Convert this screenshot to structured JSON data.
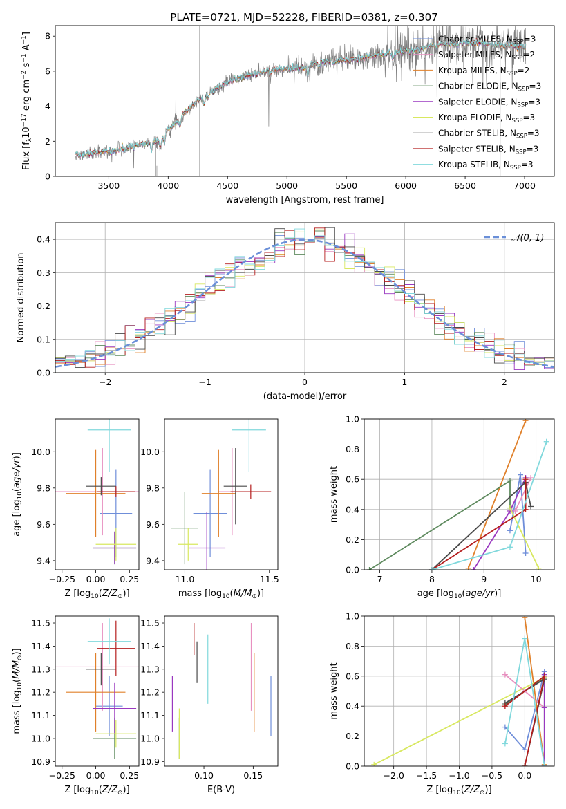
{
  "suptitle": "PLATE=0721, MJD=52228, FIBERID=0381, z=0.307",
  "colors": {
    "Chabrier MILES": "#6f8ed9",
    "Salpeter MILES": "#e890c0",
    "Kroupa MILES": "#e0802a",
    "Chabrier ELODIE": "#5e8a5e",
    "Salpeter ELODIE": "#9a38c0",
    "Kroupa ELODIE": "#d8e860",
    "Chabrier STELIB": "#4a4a4a",
    "Salpeter STELIB": "#b51e1e",
    "Kroupa STELIB": "#80d8dc"
  },
  "chart_data": [
    {
      "type": "line",
      "title": "PLATE=0721, MJD=52228, FIBERID=0381, z=0.307",
      "xlabel": "wavelength [Angstrom, rest frame]",
      "ylabel": "Flux [f_λ 10^-17 erg cm^-2 s^-1 A^-1]",
      "xlim": [
        3050,
        7250
      ],
      "ylim": [
        0,
        8.6
      ],
      "xticks": [
        3500,
        4000,
        4500,
        5000,
        5500,
        6000,
        6500,
        7000
      ],
      "yticks": [
        0,
        2,
        4,
        6,
        8
      ],
      "grid": false,
      "legend_position": "upper right",
      "continuum_knots": {
        "x": [
          3220,
          3400,
          3550,
          3700,
          3800,
          3900,
          3950,
          4000,
          4100,
          4200,
          4300,
          4400,
          4500,
          4600,
          4700,
          4800,
          4900,
          5000,
          5100,
          5200,
          5300,
          5400,
          5500,
          5600,
          5700,
          5800,
          5900,
          6000,
          6100,
          6200,
          6300,
          6400,
          6500,
          6600,
          6700,
          6800,
          6900,
          7000
        ],
        "y": [
          1.2,
          1.35,
          1.45,
          1.7,
          1.9,
          2.05,
          2.2,
          2.7,
          3.3,
          4.0,
          4.6,
          5.0,
          5.35,
          5.6,
          5.8,
          6.0,
          6.1,
          6.1,
          6.15,
          6.35,
          6.5,
          6.55,
          6.6,
          6.7,
          6.85,
          7.0,
          7.05,
          7.15,
          7.25,
          7.4,
          7.6,
          7.55,
          7.6,
          7.65,
          7.55,
          7.5,
          7.45,
          7.4
        ]
      },
      "absorption_dips": [
        {
          "x": 3860,
          "depth": 0.5
        },
        {
          "x": 3934,
          "depth": 0.6
        },
        {
          "x": 3970,
          "depth": 0.55
        },
        {
          "x": 4102,
          "depth": 0.4
        },
        {
          "x": 4304,
          "depth": 0.6
        },
        {
          "x": 4340,
          "depth": 0.35
        },
        {
          "x": 4861,
          "depth": 0.35
        },
        {
          "x": 5175,
          "depth": 0.6
        },
        {
          "x": 5270,
          "depth": 0.3
        },
        {
          "x": 5892,
          "depth": 0.45
        }
      ],
      "series": [
        {
          "name": "Chabrier MILES",
          "label_main": "Chabrier MILES, N",
          "label_sub": "SSP",
          "label_end": "=3"
        },
        {
          "name": "Salpeter MILES",
          "label_main": "Salpeter MILES, N",
          "label_sub": "SSP",
          "label_end": "=2"
        },
        {
          "name": "Kroupa MILES",
          "label_main": "Kroupa MILES, N",
          "label_sub": "SSP",
          "label_end": "=2"
        },
        {
          "name": "Chabrier ELODIE",
          "label_main": "Chabrier ELODIE, N",
          "label_sub": "SSP",
          "label_end": "=3"
        },
        {
          "name": "Salpeter ELODIE",
          "label_main": "Salpeter ELODIE, N",
          "label_sub": "SSP",
          "label_end": "=3"
        },
        {
          "name": "Kroupa ELODIE",
          "label_main": "Kroupa ELODIE, N",
          "label_sub": "SSP",
          "label_end": "=3"
        },
        {
          "name": "Chabrier STELIB",
          "label_main": "Chabrier STELIB, N",
          "label_sub": "SSP",
          "label_end": "=3"
        },
        {
          "name": "Salpeter STELIB",
          "label_main": "Salpeter STELIB, N",
          "label_sub": "SSP",
          "label_end": "=3"
        },
        {
          "name": "Kroupa STELIB",
          "label_main": "Kroupa STELIB, N",
          "label_sub": "SSP",
          "label_end": "=3"
        }
      ],
      "data_series_color": "#808080"
    },
    {
      "type": "line",
      "xlabel": "(data-model)/error",
      "ylabel": "Normed distribution",
      "xlim": [
        -2.5,
        2.5
      ],
      "ylim": [
        0,
        0.45
      ],
      "xticks": [
        -2,
        -1,
        0,
        1,
        2
      ],
      "yticks": [
        0.0,
        0.1,
        0.2,
        0.3,
        0.4
      ],
      "grid": true,
      "legend_position": "upper right",
      "legend_label": "𝒩(0, 1)",
      "reference_curve": "normal",
      "histogram_bin_width": 0.1,
      "histogram_series": [
        "Chabrier MILES",
        "Salpeter MILES",
        "Kroupa MILES",
        "Chabrier ELODIE",
        "Salpeter ELODIE",
        "Kroupa ELODIE",
        "Chabrier STELIB",
        "Salpeter STELIB",
        "Kroupa STELIB"
      ]
    },
    {
      "type": "scatter",
      "xlabel": "Z [log10(Z/Z⊙)]",
      "ylabel": "age [log10(age/yr)]",
      "xlim": [
        -0.3,
        0.32
      ],
      "ylim": [
        9.35,
        10.18
      ],
      "xticks": [
        -0.25,
        0.0,
        0.25
      ],
      "yticks": [
        9.4,
        9.6,
        9.8,
        10.0
      ],
      "grid": false,
      "points": [
        {
          "series": "Chabrier MILES",
          "x": 0.15,
          "xerr": 0.12,
          "y": 9.66,
          "yerr": 0.24
        },
        {
          "series": "Salpeter MILES",
          "x": 0.05,
          "xerr": 0.36,
          "y": 9.78,
          "yerr": 0.24
        },
        {
          "series": "Kroupa MILES",
          "x": 0.0,
          "xerr": 0.22,
          "y": 9.77,
          "yerr": 0.24
        },
        {
          "series": "Chabrier ELODIE",
          "x": 0.14,
          "xerr": 0.16,
          "y": 9.47,
          "yerr": 0.09
        },
        {
          "series": "Salpeter ELODIE",
          "x": 0.14,
          "xerr": 0.16,
          "y": 9.47,
          "yerr": 0.09
        },
        {
          "series": "Kroupa ELODIE",
          "x": 0.15,
          "xerr": 0.15,
          "y": 9.49,
          "yerr": 0.09
        },
        {
          "series": "Chabrier STELIB",
          "x": 0.04,
          "xerr": 0.11,
          "y": 9.81,
          "yerr": 0.05
        },
        {
          "series": "Salpeter STELIB",
          "x": 0.15,
          "xerr": 0.14,
          "y": 9.78,
          "yerr": 0.03
        },
        {
          "series": "Kroupa STELIB",
          "x": 0.1,
          "xerr": 0.16,
          "y": 10.12,
          "yerr": 0.23
        }
      ]
    },
    {
      "type": "scatter",
      "xlabel": "mass [log10(M/M⊙)]",
      "ylabel": "",
      "xlim": [
        10.88,
        11.55
      ],
      "ylim": [
        9.35,
        10.18
      ],
      "xticks": [
        11.0,
        11.5
      ],
      "yticks": [
        9.4,
        9.6,
        9.8,
        10.0
      ],
      "grid": false,
      "points": [
        {
          "series": "Chabrier MILES",
          "x": 11.15,
          "xerr": 0.1,
          "y": 9.66,
          "yerr": 0.24
        },
        {
          "series": "Salpeter MILES",
          "x": 11.28,
          "xerr": 0.08,
          "y": 9.78,
          "yerr": 0.24
        },
        {
          "series": "Kroupa MILES",
          "x": 11.2,
          "xerr": 0.1,
          "y": 9.77,
          "yerr": 0.24
        },
        {
          "series": "Chabrier ELODIE",
          "x": 11.0,
          "xerr": 0.08,
          "y": 9.58,
          "yerr": 0.2
        },
        {
          "series": "Salpeter ELODIE",
          "x": 11.13,
          "xerr": 0.11,
          "y": 9.47,
          "yerr": 0.2
        },
        {
          "series": "Kroupa ELODIE",
          "x": 11.02,
          "xerr": 0.06,
          "y": 9.49,
          "yerr": 0.09
        },
        {
          "series": "Chabrier STELIB",
          "x": 11.3,
          "xerr": 0.07,
          "y": 9.81,
          "yerr": 0.21
        },
        {
          "series": "Salpeter STELIB",
          "x": 11.39,
          "xerr": 0.12,
          "y": 9.78,
          "yerr": 0.04
        },
        {
          "series": "Kroupa STELIB",
          "x": 11.38,
          "xerr": 0.1,
          "y": 10.12,
          "yerr": 0.23
        }
      ]
    },
    {
      "type": "line",
      "xlabel": "age [log10(age/yr)]",
      "ylabel": "mass weight",
      "xlim": [
        6.7,
        10.35
      ],
      "ylim": [
        0,
        1
      ],
      "xticks": [
        7,
        8,
        9,
        10
      ],
      "yticks": [
        0.0,
        0.2,
        0.4,
        0.6,
        0.8,
        1.0
      ],
      "grid": true,
      "series": [
        {
          "name": "Chabrier MILES",
          "x": [
            9.5,
            9.7,
            9.8
          ],
          "y": [
            0.26,
            0.63,
            0.11
          ]
        },
        {
          "name": "Salpeter MILES",
          "x": [
            9.6,
            9.9
          ],
          "y": [
            0.39,
            0.61
          ]
        },
        {
          "name": "Kroupa MILES",
          "x": [
            8.7,
            9.8
          ],
          "y": [
            0.01,
            0.99
          ]
        },
        {
          "name": "Chabrier ELODIE",
          "x": [
            6.8,
            9.5,
            9.5
          ],
          "y": [
            0.0,
            0.59,
            0.41
          ]
        },
        {
          "name": "Salpeter ELODIE",
          "x": [
            8.8,
            9.5,
            9.8
          ],
          "y": [
            0.0,
            0.39,
            0.61
          ]
        },
        {
          "name": "Kroupa ELODIE",
          "x": [
            9.5,
            10.05
          ],
          "y": [
            0.41,
            0.01
          ]
        },
        {
          "name": "Chabrier STELIB",
          "x": [
            8.0,
            9.8,
            9.9
          ],
          "y": [
            0.0,
            0.58,
            0.42
          ]
        },
        {
          "name": "Salpeter STELIB",
          "x": [
            8.0,
            9.8,
            9.8
          ],
          "y": [
            0.0,
            0.4,
            0.6
          ]
        },
        {
          "name": "Kroupa STELIB",
          "x": [
            8.0,
            9.5,
            10.2
          ],
          "y": [
            0.0,
            0.15,
            0.85
          ]
        }
      ]
    },
    {
      "type": "scatter",
      "xlabel": "Z [log10(Z/Z⊙)]",
      "ylabel": "mass [log10(M/M⊙)]",
      "xlim": [
        -0.3,
        0.32
      ],
      "ylim": [
        10.88,
        11.53
      ],
      "xticks": [
        -0.25,
        0.0,
        0.25
      ],
      "yticks": [
        10.9,
        11.0,
        11.1,
        11.2,
        11.3,
        11.4,
        11.5
      ],
      "grid": false,
      "points": [
        {
          "series": "Chabrier MILES",
          "x": 0.1,
          "xerr": 0.1,
          "y": 11.14,
          "yerr": 0.13
        },
        {
          "series": "Salpeter MILES",
          "x": 0.05,
          "xerr": 0.36,
          "y": 11.31,
          "yerr": 0.19
        },
        {
          "series": "Kroupa MILES",
          "x": 0.0,
          "xerr": 0.22,
          "y": 11.2,
          "yerr": 0.17
        },
        {
          "series": "Chabrier ELODIE",
          "x": 0.14,
          "xerr": 0.16,
          "y": 11.0,
          "yerr": 0.09
        },
        {
          "series": "Salpeter ELODIE",
          "x": 0.14,
          "xerr": 0.16,
          "y": 11.13,
          "yerr": 0.11
        },
        {
          "series": "Kroupa ELODIE",
          "x": 0.15,
          "xerr": 0.15,
          "y": 11.02,
          "yerr": 0.06
        },
        {
          "series": "Chabrier STELIB",
          "x": 0.04,
          "xerr": 0.11,
          "y": 11.3,
          "yerr": 0.07
        },
        {
          "series": "Salpeter STELIB",
          "x": 0.15,
          "xerr": 0.14,
          "y": 11.39,
          "yerr": 0.12
        },
        {
          "series": "Kroupa STELIB",
          "x": 0.1,
          "xerr": 0.16,
          "y": 11.42,
          "yerr": 0.1
        }
      ]
    },
    {
      "type": "scatter",
      "xlabel": "E(B-V)",
      "ylabel": "",
      "xlim": [
        0.06,
        0.175
      ],
      "ylim": [
        10.88,
        11.53
      ],
      "xticks": [
        0.1,
        0.15
      ],
      "yticks": [
        10.9,
        11.0,
        11.1,
        11.2,
        11.3,
        11.4,
        11.5
      ],
      "grid": false,
      "points": [
        {
          "series": "Chabrier MILES",
          "x": 0.168,
          "y": 11.14,
          "yerr": 0.13
        },
        {
          "series": "Salpeter MILES",
          "x": 0.148,
          "y": 11.31,
          "yerr": 0.19
        },
        {
          "series": "Kroupa MILES",
          "x": 0.151,
          "y": 11.2,
          "yerr": 0.17
        },
        {
          "series": "Chabrier ELODIE",
          "x": 0.075,
          "y": 11.0,
          "yerr": 0.09
        },
        {
          "series": "Salpeter ELODIE",
          "x": 0.068,
          "y": 11.15,
          "yerr": 0.12
        },
        {
          "series": "Kroupa ELODIE",
          "x": 0.075,
          "y": 11.02,
          "yerr": 0.11
        },
        {
          "series": "Chabrier STELIB",
          "x": 0.093,
          "y": 11.33,
          "yerr": 0.09
        },
        {
          "series": "Salpeter STELIB",
          "x": 0.09,
          "y": 11.43,
          "yerr": 0.07
        },
        {
          "series": "Kroupa STELIB",
          "x": 0.104,
          "y": 11.3,
          "yerr": 0.15
        }
      ]
    },
    {
      "type": "line",
      "xlabel": "Z [log10(Z/Z⊙)]",
      "ylabel": "mass weight",
      "xlim": [
        -2.45,
        0.45
      ],
      "ylim": [
        0,
        1
      ],
      "xticks": [
        -2.0,
        -1.5,
        -1.0,
        -0.5,
        0.0
      ],
      "yticks": [
        0.0,
        0.2,
        0.4,
        0.6,
        0.8,
        1.0
      ],
      "grid": true,
      "series": [
        {
          "name": "Chabrier MILES",
          "x": [
            -0.3,
            0.0,
            0.3
          ],
          "y": [
            0.26,
            0.11,
            0.63
          ]
        },
        {
          "name": "Salpeter MILES",
          "x": [
            -0.3,
            0.3
          ],
          "y": [
            0.61,
            0.39
          ]
        },
        {
          "name": "Kroupa MILES",
          "x": [
            0.0,
            0.3
          ],
          "y": [
            0.99,
            0.01
          ]
        },
        {
          "name": "Chabrier ELODIE",
          "x": [
            -0.3,
            0.3,
            0.3
          ],
          "y": [
            0.41,
            0.59,
            0.0
          ]
        },
        {
          "name": "Salpeter ELODIE",
          "x": [
            0.3,
            0.3,
            0.3
          ],
          "y": [
            0.61,
            0.39,
            0.0
          ]
        },
        {
          "name": "Kroupa ELODIE",
          "x": [
            -2.3,
            0.3
          ],
          "y": [
            0.01,
            0.59
          ]
        },
        {
          "name": "Chabrier STELIB",
          "x": [
            -0.3,
            0.3,
            0.0
          ],
          "y": [
            0.42,
            0.58,
            0.0
          ]
        },
        {
          "name": "Salpeter STELIB",
          "x": [
            -0.3,
            0.3,
            0.0
          ],
          "y": [
            0.4,
            0.6,
            0.0
          ]
        },
        {
          "name": "Kroupa STELIB",
          "x": [
            -0.3,
            0.0,
            0.3
          ],
          "y": [
            0.15,
            0.85,
            0.0
          ]
        }
      ]
    }
  ]
}
